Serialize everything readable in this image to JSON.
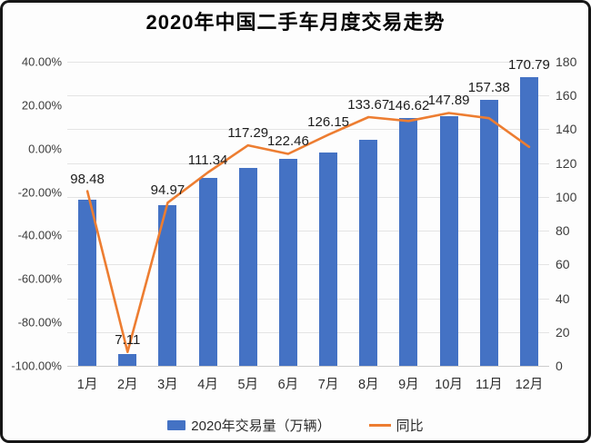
{
  "chart_data": {
    "type": "bar",
    "combo": "bar+line",
    "title": "2020年中国二手车月度交易走势",
    "categories": [
      "1月",
      "2月",
      "3月",
      "4月",
      "5月",
      "6月",
      "7月",
      "8月",
      "9月",
      "10月",
      "11月",
      "12月"
    ],
    "series": [
      {
        "name": "2020年交易量（万辆）",
        "type": "bar",
        "axis": "right",
        "color": "#4472C4",
        "values": [
          98.48,
          7.11,
          94.97,
          111.34,
          117.29,
          122.46,
          126.15,
          133.67,
          146.62,
          147.89,
          157.38,
          170.79
        ],
        "data_labels": [
          "98.48",
          "7.11",
          "94.97",
          "111.34",
          "117.29",
          "122.46",
          "126.15",
          "133.67",
          "146.62",
          "147.89",
          "157.38",
          "170.79"
        ]
      },
      {
        "name": "同比",
        "type": "line",
        "axis": "left",
        "color": "#ED7D31",
        "values_pct_estimated": [
          -19.6,
          -93.6,
          -24.9,
          -11.0,
          1.5,
          -2.4,
          6.4,
          14.5,
          12.7,
          16.4,
          14.0,
          0.8
        ]
      }
    ],
    "left_axis": {
      "labels": [
        "40.00%",
        "20.00%",
        "0.00%",
        "-20.00%",
        "-40.00%",
        "-60.00%",
        "-80.00%",
        "-100.00%"
      ],
      "values": [
        40,
        20,
        0,
        -20,
        -40,
        -60,
        -80,
        -100
      ],
      "max": 40,
      "min": -100
    },
    "right_axis": {
      "labels": [
        "180",
        "160",
        "140",
        "120",
        "100",
        "80",
        "60",
        "40",
        "20",
        "0"
      ],
      "values": [
        180,
        160,
        140,
        120,
        100,
        80,
        60,
        40,
        20,
        0
      ],
      "max": 180,
      "min": 0
    },
    "grid": true,
    "legend_position": "bottom",
    "colors": {
      "bar": "#4472C4",
      "line": "#ED7D31",
      "gridline": "#e4e4e4",
      "frame_border": "#161616",
      "background": "#fdfdfd"
    }
  }
}
